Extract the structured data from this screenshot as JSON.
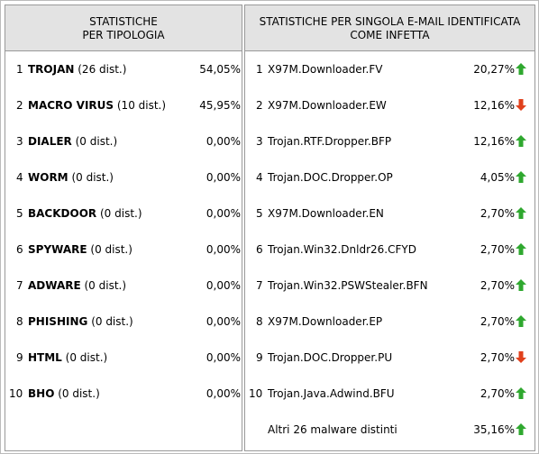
{
  "left": {
    "title": [
      "STATISTICHE",
      "PER TIPOLOGIA"
    ],
    "rows": [
      {
        "rank": "1",
        "name": "TROJAN",
        "detail": "(26 dist.)",
        "percent": "54,05%"
      },
      {
        "rank": "2",
        "name": "MACRO VIRUS",
        "detail": "(10 dist.)",
        "percent": "45,95%"
      },
      {
        "rank": "3",
        "name": "DIALER",
        "detail": "(0 dist.)",
        "percent": "0,00%"
      },
      {
        "rank": "4",
        "name": "WORM",
        "detail": "(0 dist.)",
        "percent": "0,00%"
      },
      {
        "rank": "5",
        "name": "BACKDOOR",
        "detail": "(0 dist.)",
        "percent": "0,00%"
      },
      {
        "rank": "6",
        "name": "SPYWARE",
        "detail": "(0 dist.)",
        "percent": "0,00%"
      },
      {
        "rank": "7",
        "name": "ADWARE",
        "detail": "(0 dist.)",
        "percent": "0,00%"
      },
      {
        "rank": "8",
        "name": "PHISHING",
        "detail": "(0 dist.)",
        "percent": "0,00%"
      },
      {
        "rank": "9",
        "name": "HTML",
        "detail": "(0 dist.)",
        "percent": "0,00%"
      },
      {
        "rank": "10",
        "name": "BHO",
        "detail": "(0 dist.)",
        "percent": "0,00%"
      }
    ]
  },
  "right": {
    "title": [
      "STATISTICHE PER SINGOLA E-MAIL IDENTIFICATA",
      "COME INFETTA"
    ],
    "rows": [
      {
        "rank": "1",
        "name": "X97M.Downloader.FV",
        "percent": "20,27%",
        "trend": "up"
      },
      {
        "rank": "2",
        "name": "X97M.Downloader.EW",
        "percent": "12,16%",
        "trend": "down"
      },
      {
        "rank": "3",
        "name": "Trojan.RTF.Dropper.BFP",
        "percent": "12,16%",
        "trend": "up"
      },
      {
        "rank": "4",
        "name": "Trojan.DOC.Dropper.OP",
        "percent": "4,05%",
        "trend": "up"
      },
      {
        "rank": "5",
        "name": "X97M.Downloader.EN",
        "percent": "2,70%",
        "trend": "up"
      },
      {
        "rank": "6",
        "name": "Trojan.Win32.Dnldr26.CFYD",
        "percent": "2,70%",
        "trend": "up"
      },
      {
        "rank": "7",
        "name": "Trojan.Win32.PSWStealer.BFN",
        "percent": "2,70%",
        "trend": "up"
      },
      {
        "rank": "8",
        "name": "X97M.Downloader.EP",
        "percent": "2,70%",
        "trend": "up"
      },
      {
        "rank": "9",
        "name": "Trojan.DOC.Dropper.PU",
        "percent": "2,70%",
        "trend": "down"
      },
      {
        "rank": "10",
        "name": "Trojan.Java.Adwind.BFU",
        "percent": "2,70%",
        "trend": "up"
      }
    ],
    "others": {
      "name": "Altri 26 malware distinti",
      "percent": "35,16%",
      "trend": "up"
    }
  }
}
